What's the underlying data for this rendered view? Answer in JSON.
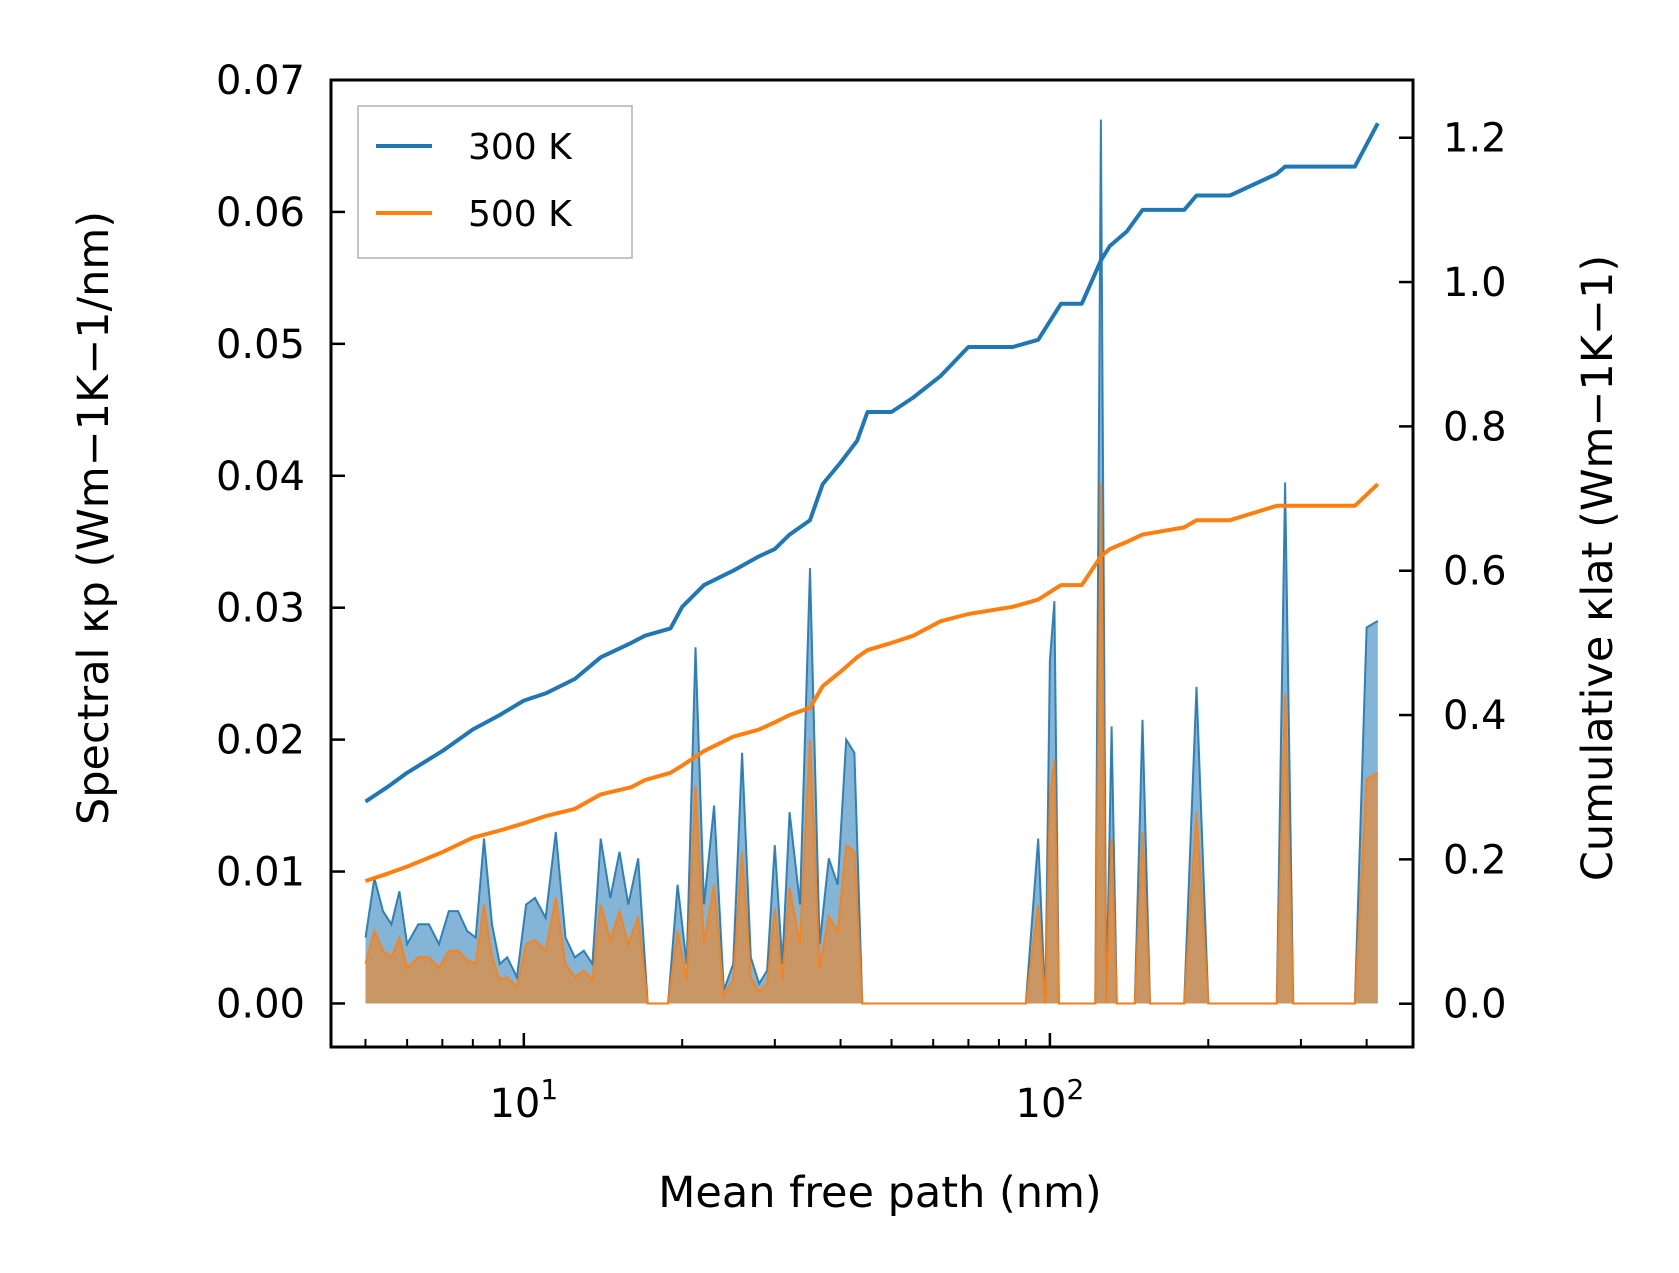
{
  "chart_data": {
    "type": "line",
    "xlabel": "Mean free path (nm)",
    "ylabel_left": "Spectral κp (Wm−1K−1/nm)",
    "ylabel_right": "Cumulative κlat (Wm−1K−1)",
    "xscale": "log",
    "xlim": [
      4.3,
      490
    ],
    "ylim_left": [
      -0.0033,
      0.07
    ],
    "ylim_right": [
      -0.06,
      1.28
    ],
    "x_ticks": [
      {
        "value": 10,
        "base": "10",
        "exp": "1"
      },
      {
        "value": 100,
        "base": "10",
        "exp": "2"
      }
    ],
    "left_ticks": [
      "0.00",
      "0.01",
      "0.02",
      "0.03",
      "0.04",
      "0.05",
      "0.06",
      "0.07"
    ],
    "right_ticks": [
      "0.0",
      "0.2",
      "0.4",
      "0.6",
      "0.8",
      "1.0",
      "1.2"
    ],
    "legend": [
      {
        "label": "300 K",
        "color": "#1f77b4"
      },
      {
        "label": "500 K",
        "color": "#ff7f0e"
      }
    ],
    "cumulative": {
      "x": [
        5,
        5.5,
        6,
        7,
        8,
        9,
        10,
        11,
        12.5,
        14,
        16,
        17,
        19,
        20,
        22,
        25,
        28,
        30,
        32,
        35,
        37,
        40,
        43,
        45,
        50,
        55,
        62,
        70,
        85,
        95,
        105,
        115,
        125,
        130,
        140,
        150,
        180,
        190,
        220,
        270,
        280,
        380,
        420
      ],
      "series": [
        {
          "name": "300 K",
          "values": [
            0.28,
            0.3,
            0.32,
            0.35,
            0.38,
            0.4,
            0.42,
            0.43,
            0.45,
            0.48,
            0.5,
            0.51,
            0.52,
            0.55,
            0.58,
            0.6,
            0.62,
            0.63,
            0.65,
            0.67,
            0.72,
            0.75,
            0.78,
            0.82,
            0.82,
            0.84,
            0.87,
            0.91,
            0.91,
            0.92,
            0.97,
            0.97,
            1.03,
            1.05,
            1.07,
            1.1,
            1.1,
            1.12,
            1.12,
            1.15,
            1.16,
            1.16,
            1.22
          ]
        },
        {
          "name": "500 K",
          "values": [
            0.17,
            0.18,
            0.19,
            0.21,
            0.23,
            0.24,
            0.25,
            0.26,
            0.27,
            0.29,
            0.3,
            0.31,
            0.32,
            0.33,
            0.35,
            0.37,
            0.38,
            0.39,
            0.4,
            0.41,
            0.44,
            0.46,
            0.48,
            0.49,
            0.5,
            0.51,
            0.53,
            0.54,
            0.55,
            0.56,
            0.58,
            0.58,
            0.62,
            0.63,
            0.64,
            0.65,
            0.66,
            0.67,
            0.67,
            0.69,
            0.69,
            0.69,
            0.72
          ]
        }
      ]
    },
    "spectral": {
      "x": [
        5,
        5.2,
        5.4,
        5.6,
        5.8,
        6,
        6.3,
        6.6,
        6.9,
        7.2,
        7.5,
        7.8,
        8.1,
        8.4,
        8.7,
        9,
        9.3,
        9.7,
        10.1,
        10.5,
        11,
        11.5,
        12,
        12.5,
        13,
        13.5,
        14,
        14.6,
        15.2,
        15.8,
        16.5,
        17.2,
        18,
        18.8,
        19.6,
        20.4,
        21.2,
        22,
        23,
        24,
        25,
        26,
        27,
        28,
        29,
        30,
        31,
        32,
        33.5,
        35,
        36.5,
        38,
        39.5,
        41,
        42.5,
        44,
        45.5,
        47,
        49,
        51,
        53,
        55,
        57,
        59,
        61,
        63,
        65,
        67,
        69,
        71,
        73,
        75,
        80,
        85,
        90,
        95,
        98,
        100,
        102,
        104,
        106,
        108,
        110,
        113,
        116,
        119,
        122,
        125,
        128,
        131,
        134,
        137,
        140,
        145,
        150,
        155,
        160,
        170,
        180,
        190,
        200,
        220,
        240,
        260,
        270,
        280,
        290,
        300,
        320,
        340,
        360,
        380,
        400,
        420
      ],
      "series": [
        {
          "name": "300 K",
          "values": [
            0.005,
            0.0095,
            0.007,
            0.006,
            0.0085,
            0.0045,
            0.006,
            0.006,
            0.0045,
            0.007,
            0.007,
            0.0055,
            0.005,
            0.0125,
            0.006,
            0.003,
            0.0035,
            0.002,
            0.0075,
            0.008,
            0.0065,
            0.013,
            0.005,
            0.0035,
            0.004,
            0.003,
            0.0125,
            0.008,
            0.0115,
            0.0075,
            0.011,
            0.0,
            0.0,
            0.0,
            0.009,
            0.003,
            0.027,
            0.0075,
            0.015,
            0.001,
            0.003,
            0.019,
            0.0035,
            0.0015,
            0.0025,
            0.012,
            0.003,
            0.0145,
            0.0075,
            0.033,
            0.0045,
            0.011,
            0.009,
            0.02,
            0.019,
            0.0,
            0.0,
            0.0,
            0.0,
            0.0,
            0.0,
            0.0,
            0.0,
            0.0,
            0.0,
            0.0,
            0.0,
            0.0,
            0.0,
            0.0,
            0.0,
            0.0,
            0.0,
            0.0,
            0.0,
            0.0125,
            0.0,
            0.026,
            0.0305,
            0.0,
            0.0,
            0.0,
            0.0,
            0.0,
            0.0,
            0.0,
            0.0,
            0.067,
            0.0,
            0.021,
            0.0,
            0.0,
            0.0,
            0.0,
            0.0215,
            0.0,
            0.0,
            0.0,
            0.0,
            0.024,
            0.0,
            0.0,
            0.0,
            0.0,
            0.0,
            0.0395,
            0.0,
            0.0,
            0.0,
            0.0,
            0.0,
            0.0,
            0.0285,
            0.029
          ]
        },
        {
          "name": "500 K",
          "values": [
            0.003,
            0.0055,
            0.004,
            0.0035,
            0.005,
            0.0027,
            0.0035,
            0.0035,
            0.0027,
            0.004,
            0.004,
            0.0033,
            0.003,
            0.0075,
            0.0035,
            0.0018,
            0.002,
            0.0012,
            0.0045,
            0.0048,
            0.004,
            0.008,
            0.003,
            0.002,
            0.0025,
            0.0018,
            0.0075,
            0.0048,
            0.007,
            0.0045,
            0.0066,
            0.0,
            0.0,
            0.0,
            0.0055,
            0.0018,
            0.0165,
            0.0045,
            0.009,
            0.0006,
            0.0018,
            0.0115,
            0.002,
            0.0009,
            0.0015,
            0.0072,
            0.0018,
            0.0088,
            0.0045,
            0.02,
            0.0027,
            0.0066,
            0.0055,
            0.012,
            0.0115,
            0.0,
            0.0,
            0.0,
            0.0,
            0.0,
            0.0,
            0.0,
            0.0,
            0.0,
            0.0,
            0.0,
            0.0,
            0.0,
            0.0,
            0.0,
            0.0,
            0.0,
            0.0,
            0.0,
            0.0,
            0.0075,
            0.0,
            0.0155,
            0.0185,
            0.0,
            0.0,
            0.0,
            0.0,
            0.0,
            0.0,
            0.0,
            0.0,
            0.0395,
            0.0,
            0.0125,
            0.0,
            0.0,
            0.0,
            0.0,
            0.013,
            0.0,
            0.0,
            0.0,
            0.0,
            0.0145,
            0.0,
            0.0,
            0.0,
            0.0,
            0.0,
            0.0235,
            0.0,
            0.0,
            0.0,
            0.0,
            0.0,
            0.0,
            0.017,
            0.0175
          ]
        }
      ]
    }
  }
}
